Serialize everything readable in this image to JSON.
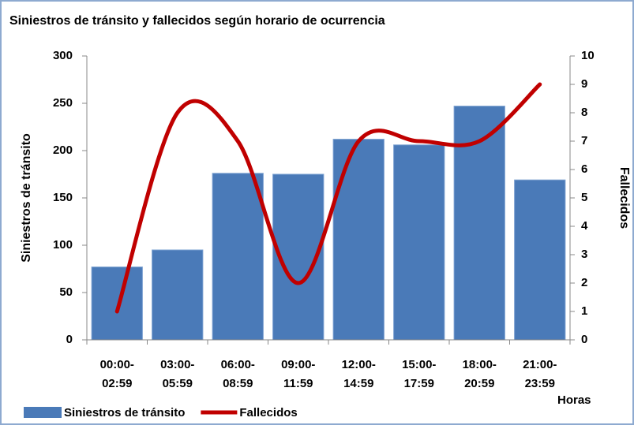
{
  "chart_data": {
    "type": "bar",
    "title": "Siniestros de tránsito y fallecidos según horario de ocurrencia",
    "categories": [
      "00:00-\n02:59",
      "03:00-\n05:59",
      "06:00-\n08:59",
      "09:00-\n11:59",
      "12:00-\n14:59",
      "15:00-\n17:59",
      "18:00-\n20:59",
      "21:00-\n23:59"
    ],
    "series": [
      {
        "name": "Siniestros de tránsito",
        "type": "bar",
        "color": "#4a7ab8",
        "values": [
          77,
          95,
          176,
          175,
          212,
          206,
          247,
          169
        ]
      },
      {
        "name": "Fallecidos",
        "type": "line",
        "smooth": true,
        "axis": "y2",
        "color": "#c00000",
        "values": [
          1,
          8,
          7,
          2,
          7,
          7,
          7,
          9
        ]
      }
    ],
    "ylabel": "Siniestros de tránsito",
    "y2label": "Fallecidos",
    "xlabel": "Horas",
    "ylim": [
      0,
      300
    ],
    "yticks": [
      0,
      50,
      100,
      150,
      200,
      250,
      300
    ],
    "y2lim": [
      0,
      10
    ],
    "y2ticks": [
      0,
      1,
      2,
      3,
      4,
      5,
      6,
      7,
      8,
      9,
      10
    ],
    "grid": false,
    "legend": "bottom"
  }
}
